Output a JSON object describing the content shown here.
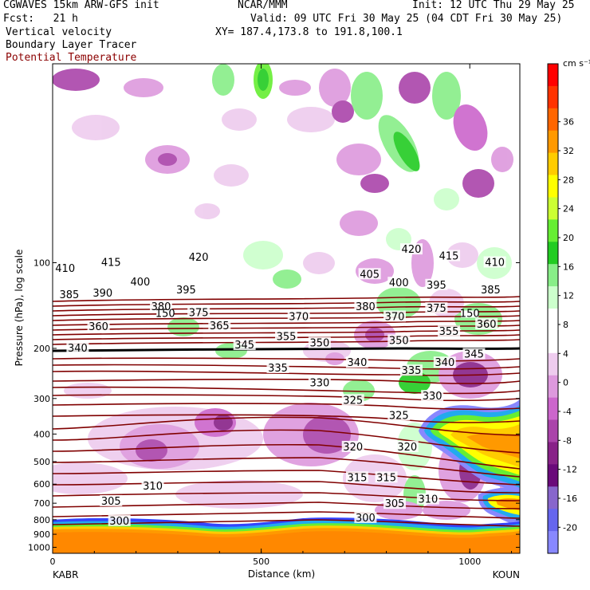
{
  "header": {
    "model": "CGWAVES 15km ARW-GFS init",
    "org": "NCAR/MMM",
    "init": "Init: 12 UTC Thu 29 May 25",
    "fcst": "Fcst:   21 h",
    "valid": "Valid: 09 UTC Fri 30 May 25 (04 CDT Fri 30 May 25)",
    "field1": "Vertical velocity",
    "xy": "XY= 187.4,173.8 to 191.8,100.1",
    "field2": "Boundary Layer Tracer",
    "field3": "Potential Temperature"
  },
  "chart_data": {
    "type": "heatmap",
    "xlabel": "Distance (km)",
    "ylabel": "Pressure (hPa), log scale",
    "x_ticks": [
      "0",
      "500",
      "1000"
    ],
    "xlim": [
      0,
      1120
    ],
    "y_ticks": [
      "100",
      "200",
      "300",
      "400",
      "500",
      "600",
      "700",
      "800",
      "900",
      "1000"
    ],
    "y_tick_values": [
      100,
      200,
      300,
      400,
      500,
      600,
      700,
      800,
      900,
      1000
    ],
    "y_scale": "log",
    "ylim": [
      1050,
      20
    ],
    "endpoint_left": "KABR",
    "endpoint_right": "KOUN",
    "colorbar": {
      "units": "cm s⁻¹",
      "ticks": [
        "36",
        "32",
        "28",
        "24",
        "20",
        "16",
        "12",
        "8",
        "4",
        "0",
        "-4",
        "-8",
        "-12",
        "-16",
        "-20"
      ],
      "colors": [
        "#ff0000",
        "#ff3300",
        "#ff6600",
        "#ff9900",
        "#ffcc00",
        "#ffff00",
        "#ccff33",
        "#66ee33",
        "#22cc22",
        "#88ee88",
        "#ccffcc",
        "#ffffff",
        "#ffffff",
        "#eeccee",
        "#dd99dd",
        "#cc66cc",
        "#aa44aa",
        "#882288",
        "#6a0a7a",
        "#8866cc",
        "#6666ee",
        "#8888ff"
      ]
    },
    "theta_labels": [
      {
        "text": "410",
        "x": 30,
        "p": 105
      },
      {
        "text": "415",
        "x": 140,
        "p": 100
      },
      {
        "text": "420",
        "x": 350,
        "p": 96
      },
      {
        "text": "420",
        "x": 860,
        "p": 90
      },
      {
        "text": "415",
        "x": 950,
        "p": 95
      },
      {
        "text": "410",
        "x": 1060,
        "p": 100
      },
      {
        "text": "400",
        "x": 210,
        "p": 117
      },
      {
        "text": "395",
        "x": 320,
        "p": 125
      },
      {
        "text": "405",
        "x": 760,
        "p": 110
      },
      {
        "text": "400",
        "x": 830,
        "p": 118
      },
      {
        "text": "395",
        "x": 920,
        "p": 120
      },
      {
        "text": "385",
        "x": 1050,
        "p": 125
      },
      {
        "text": "385",
        "x": 40,
        "p": 130
      },
      {
        "text": "390",
        "x": 120,
        "p": 128
      },
      {
        "text": "380",
        "x": 260,
        "p": 143
      },
      {
        "text": "375",
        "x": 350,
        "p": 150
      },
      {
        "text": "380",
        "x": 750,
        "p": 143
      },
      {
        "text": "370",
        "x": 820,
        "p": 155
      },
      {
        "text": "375",
        "x": 920,
        "p": 145
      },
      {
        "text": "370",
        "x": 590,
        "p": 155
      },
      {
        "text": "365",
        "x": 400,
        "p": 167
      },
      {
        "text": "360",
        "x": 110,
        "p": 168
      },
      {
        "text": "360",
        "x": 1040,
        "p": 165
      },
      {
        "text": "355",
        "x": 950,
        "p": 175
      },
      {
        "text": "355",
        "x": 560,
        "p": 182
      },
      {
        "text": "350",
        "x": 640,
        "p": 192
      },
      {
        "text": "350",
        "x": 830,
        "p": 188
      },
      {
        "text": "345",
        "x": 460,
        "p": 195
      },
      {
        "text": "345",
        "x": 1010,
        "p": 210
      },
      {
        "text": "340",
        "x": 60,
        "p": 200
      },
      {
        "text": "340",
        "x": 730,
        "p": 225
      },
      {
        "text": "340",
        "x": 940,
        "p": 225
      },
      {
        "text": "335",
        "x": 540,
        "p": 235
      },
      {
        "text": "335",
        "x": 860,
        "p": 240
      },
      {
        "text": "330",
        "x": 640,
        "p": 265
      },
      {
        "text": "330",
        "x": 910,
        "p": 295
      },
      {
        "text": "325",
        "x": 720,
        "p": 305
      },
      {
        "text": "325",
        "x": 830,
        "p": 345
      },
      {
        "text": "320",
        "x": 720,
        "p": 445
      },
      {
        "text": "320",
        "x": 850,
        "p": 445
      },
      {
        "text": "315",
        "x": 730,
        "p": 570
      },
      {
        "text": "315",
        "x": 800,
        "p": 570
      },
      {
        "text": "310",
        "x": 240,
        "p": 610
      },
      {
        "text": "310",
        "x": 900,
        "p": 680
      },
      {
        "text": "305",
        "x": 140,
        "p": 690
      },
      {
        "text": "305",
        "x": 820,
        "p": 705
      },
      {
        "text": "300",
        "x": 160,
        "p": 810
      },
      {
        "text": "300",
        "x": 750,
        "p": 790
      }
    ],
    "tropopause_labels": [
      {
        "text": "150",
        "x": 270,
        "p": 153
      },
      {
        "text": "150",
        "x": 1000,
        "p": 153
      }
    ]
  }
}
